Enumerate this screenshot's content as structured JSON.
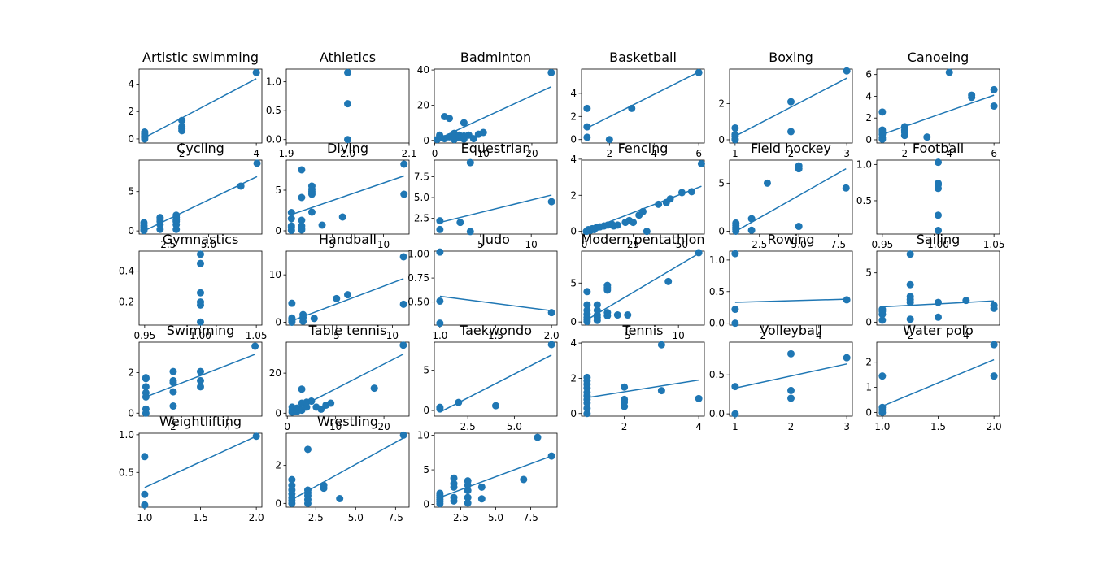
{
  "colors": {
    "point": "#1f77b4",
    "line": "#1f77b4",
    "axis": "#000000"
  },
  "chart_data": [
    {
      "type": "scatter",
      "title": "Artistic swimming",
      "xlim": [
        0.85,
        4.15
      ],
      "ylim": [
        -0.3,
        5.1
      ],
      "xticks": [
        2,
        4
      ],
      "yticks": [
        0,
        2,
        4
      ],
      "x": [
        1,
        1,
        1,
        1,
        1,
        1,
        2,
        2,
        2,
        2,
        4
      ],
      "y": [
        0.0,
        0.1,
        0.2,
        0.3,
        0.4,
        0.5,
        0.6,
        0.75,
        0.9,
        1.35,
        4.85
      ],
      "fit": [
        [
          1,
          0.1
        ],
        [
          4,
          4.4
        ]
      ]
    },
    {
      "type": "scatter",
      "title": "Athletics",
      "xlim": [
        1.9,
        2.1
      ],
      "ylim": [
        -0.06,
        1.22
      ],
      "xticks": [
        1.9,
        2.0,
        2.1
      ],
      "yticks": [
        0.0,
        0.5,
        1.0
      ],
      "x": [
        2.0,
        2.0,
        2.0
      ],
      "y": [
        0.0,
        0.62,
        1.16
      ],
      "fit": null
    },
    {
      "type": "scatter",
      "title": "Badminton",
      "xlim": [
        -0.1,
        25.2
      ],
      "ylim": [
        -1.5,
        40.5
      ],
      "xticks": [
        0,
        10,
        20
      ],
      "yticks": [
        0,
        20,
        40
      ],
      "x": [
        0.5,
        1,
        1,
        2,
        2,
        3,
        3,
        4,
        4,
        4,
        5,
        5,
        6,
        6,
        6,
        7,
        8,
        9,
        10,
        24
      ],
      "y": [
        0.5,
        1.5,
        3,
        1,
        13.5,
        2,
        12.5,
        0.5,
        1.5,
        4,
        1.5,
        3,
        0.8,
        2.5,
        10,
        3,
        1,
        3.5,
        4.5,
        38.5
      ],
      "fit": [
        [
          0.5,
          0.6
        ],
        [
          24,
          30.5
        ]
      ]
    },
    {
      "type": "scatter",
      "title": "Basketball",
      "xlim": [
        0.75,
        6.25
      ],
      "ylim": [
        -0.3,
        6.1
      ],
      "xticks": [
        2,
        4,
        6
      ],
      "yticks": [
        0,
        2,
        4
      ],
      "x": [
        1,
        1,
        1,
        2,
        3,
        6
      ],
      "y": [
        2.7,
        1.1,
        0.2,
        0.0,
        2.7,
        5.8
      ],
      "fit": [
        [
          1,
          1.0
        ],
        [
          6,
          5.85
        ]
      ]
    },
    {
      "type": "scatter",
      "title": "Boxing",
      "xlim": [
        0.9,
        3.1
      ],
      "ylim": [
        -0.18,
        3.9
      ],
      "xticks": [
        1,
        2,
        3
      ],
      "yticks": [
        0,
        2
      ],
      "x": [
        1,
        1,
        1,
        1,
        1,
        2,
        2,
        3
      ],
      "y": [
        0.0,
        0.05,
        0.2,
        0.3,
        0.65,
        2.1,
        0.45,
        3.8
      ],
      "fit": [
        [
          1,
          0.2
        ],
        [
          3,
          3.4
        ]
      ]
    },
    {
      "type": "scatter",
      "title": "Canoeing",
      "xlim": [
        0.75,
        6.25
      ],
      "ylim": [
        -0.3,
        6.5
      ],
      "xticks": [
        2,
        4,
        6
      ],
      "yticks": [
        0,
        2,
        4,
        6
      ],
      "x": [
        1,
        1,
        1,
        1,
        1,
        1,
        2,
        2,
        2,
        2,
        3,
        4,
        5,
        5,
        6,
        6
      ],
      "y": [
        0.05,
        0.2,
        0.5,
        0.7,
        0.9,
        2.55,
        0.4,
        0.7,
        0.9,
        1.2,
        0.25,
        6.2,
        3.9,
        4.1,
        3.1,
        4.6
      ],
      "fit": [
        [
          1,
          0.5
        ],
        [
          6,
          4.1
        ]
      ]
    },
    {
      "type": "scatter",
      "title": "Cycling",
      "xlim": [
        0.7,
        8.3
      ],
      "ylim": [
        -0.4,
        9.0
      ],
      "xticks": [
        2.5,
        5.0
      ],
      "yticks": [
        0,
        5
      ],
      "x": [
        1,
        1,
        1,
        1,
        1,
        2,
        2,
        2,
        2,
        2,
        3,
        3,
        3,
        3,
        3,
        3,
        7,
        8
      ],
      "y": [
        0.05,
        0.2,
        0.5,
        0.7,
        1.05,
        0.2,
        0.8,
        1.2,
        1.5,
        1.7,
        0.2,
        0.8,
        1.2,
        1.4,
        1.7,
        2.0,
        5.7,
        8.6
      ],
      "fit": [
        [
          1,
          0.0
        ],
        [
          8,
          6.9
        ]
      ]
    },
    {
      "type": "scatter",
      "title": "Diving",
      "xlim": [
        0.5,
        12.5
      ],
      "ylim": [
        -0.4,
        8.7
      ],
      "xticks": [
        5,
        10
      ],
      "yticks": [
        0,
        5
      ],
      "x": [
        1,
        1,
        1,
        1,
        1,
        2,
        2,
        2,
        2,
        2,
        2,
        3,
        3,
        3,
        3,
        3,
        4,
        6,
        12,
        12
      ],
      "y": [
        0.05,
        0.4,
        0.6,
        1.5,
        2.25,
        0.1,
        0.3,
        0.6,
        1.3,
        4.1,
        7.5,
        2.3,
        4.5,
        4.8,
        5.1,
        5.5,
        0.7,
        1.7,
        4.5,
        8.2
      ],
      "fit": [
        [
          1,
          2.0
        ],
        [
          12,
          6.75
        ]
      ]
    },
    {
      "type": "scatter",
      "title": "Equestrian",
      "xlim": [
        0.45,
        12.55
      ],
      "ylim": [
        0.6,
        9.5
      ],
      "xticks": [
        5,
        10
      ],
      "yticks": [
        2.5,
        5.0,
        7.5
      ],
      "x": [
        1,
        1,
        3,
        4,
        4,
        12
      ],
      "y": [
        1.15,
        2.2,
        2.0,
        0.9,
        9.2,
        4.5
      ],
      "fit": [
        [
          1,
          2.0
        ],
        [
          12,
          5.3
        ]
      ]
    },
    {
      "type": "scatter",
      "title": "Fencing",
      "xlim": [
        -1.5,
        61.5
      ],
      "ylim": [
        -0.15,
        3.95
      ],
      "xticks": [
        0,
        25,
        50
      ],
      "yticks": [
        0,
        2,
        4
      ],
      "x": [
        1,
        2,
        3,
        4,
        5,
        6,
        8,
        10,
        12,
        14,
        15,
        17,
        21,
        23,
        25,
        28,
        30,
        32,
        38,
        42,
        44,
        50,
        55,
        60
      ],
      "y": [
        0.0,
        0.1,
        0.05,
        0.15,
        0.1,
        0.2,
        0.25,
        0.3,
        0.35,
        0.4,
        0.3,
        0.35,
        0.5,
        0.6,
        0.5,
        0.9,
        1.1,
        0.0,
        1.5,
        1.6,
        1.8,
        2.15,
        2.2,
        3.75
      ],
      "fit": [
        [
          0,
          0.0
        ],
        [
          60,
          2.5
        ]
      ]
    },
    {
      "type": "scatter",
      "title": "Field hockey",
      "xlim": [
        0.6,
        8.4
      ],
      "ylim": [
        -0.3,
        7.4
      ],
      "xticks": [
        2.5,
        5.0,
        7.5
      ],
      "yticks": [
        0,
        5
      ],
      "x": [
        1,
        1,
        1,
        1,
        1,
        2,
        2,
        3,
        5,
        5,
        5,
        8
      ],
      "y": [
        0.0,
        0.2,
        0.4,
        0.6,
        0.85,
        1.3,
        0.1,
        5.0,
        6.8,
        6.5,
        0.5,
        4.5
      ],
      "fit": [
        [
          1,
          0.0
        ],
        [
          8,
          6.5
        ]
      ]
    },
    {
      "type": "scatter",
      "title": "Football",
      "xlim": [
        0.945,
        1.055
      ],
      "ylim": [
        0.04,
        1.06
      ],
      "xticks": [
        0.95,
        1.0,
        1.05
      ],
      "yticks": [
        0.5,
        1.0
      ],
      "x": [
        1.0,
        1.0,
        1.0,
        1.0,
        1.0,
        1.0
      ],
      "y": [
        0.09,
        0.3,
        0.67,
        0.72,
        0.74,
        1.03
      ],
      "fit": null
    },
    {
      "type": "scatter",
      "title": "Gymnastics",
      "xlim": [
        0.945,
        1.055
      ],
      "ylim": [
        0.05,
        0.53
      ],
      "xticks": [
        0.95,
        1.0,
        1.05
      ],
      "yticks": [
        0.2,
        0.4
      ],
      "x": [
        1.0,
        1.0,
        1.0,
        1.0,
        1.0,
        1.0
      ],
      "y": [
        0.07,
        0.18,
        0.2,
        0.26,
        0.45,
        0.51
      ],
      "fit": null
    },
    {
      "type": "scatter",
      "title": "Handball",
      "xlim": [
        0.5,
        11.5
      ],
      "ylim": [
        -0.6,
        15.0
      ],
      "xticks": [
        5,
        10
      ],
      "yticks": [
        0,
        10
      ],
      "x": [
        1,
        1,
        1,
        1,
        1,
        2,
        2,
        2,
        3,
        5,
        6,
        11,
        11
      ],
      "y": [
        0.0,
        0.3,
        0.6,
        0.9,
        4.0,
        0.2,
        1.0,
        1.6,
        0.8,
        5.0,
        5.8,
        13.8,
        3.8
      ],
      "fit": [
        [
          1,
          0.3
        ],
        [
          11,
          9.2
        ]
      ]
    },
    {
      "type": "scatter",
      "title": "Judo",
      "xlim": [
        0.95,
        2.05
      ],
      "ylim": [
        0.26,
        1.03
      ],
      "xticks": [
        1.0,
        1.5,
        2.0
      ],
      "yticks": [
        0.5,
        0.75,
        1.0
      ],
      "x": [
        1,
        1,
        1,
        2
      ],
      "y": [
        0.28,
        0.51,
        1.02,
        0.39
      ],
      "fit": [
        [
          1,
          0.56
        ],
        [
          2,
          0.41
        ]
      ]
    },
    {
      "type": "scatter",
      "title": "Modern pentathlon",
      "xlim": [
        0.45,
        12.55
      ],
      "ylim": [
        -0.4,
        9.1
      ],
      "xticks": [
        5,
        10
      ],
      "yticks": [
        0,
        5
      ],
      "x": [
        1,
        1,
        1,
        1,
        1,
        1,
        1,
        2,
        2,
        2,
        2,
        2,
        3,
        3,
        3,
        3,
        3,
        4,
        5,
        9,
        12
      ],
      "y": [
        0.05,
        0.3,
        0.6,
        1.0,
        1.5,
        2.2,
        3.9,
        0.2,
        0.6,
        0.9,
        1.5,
        2.2,
        0.8,
        1.2,
        4.1,
        4.4,
        4.7,
        0.9,
        0.9,
        5.2,
        8.9
      ],
      "fit": [
        [
          1,
          0.3
        ],
        [
          12,
          8.8
        ]
      ]
    },
    {
      "type": "scatter",
      "title": "Rowing",
      "xlim": [
        0.8,
        5.2
      ],
      "ylim": [
        -0.03,
        1.14
      ],
      "xticks": [
        2,
        4
      ],
      "yticks": [
        0.0,
        0.5,
        1.0
      ],
      "x": [
        1,
        1,
        1,
        5
      ],
      "y": [
        0.0,
        0.22,
        1.1,
        0.37
      ],
      "fit": [
        [
          1,
          0.33
        ],
        [
          5,
          0.38
        ]
      ]
    },
    {
      "type": "scatter",
      "title": "Sailing",
      "xlim": [
        0.8,
        5.2
      ],
      "ylim": [
        -0.3,
        7.2
      ],
      "xticks": [
        2,
        4
      ],
      "yticks": [
        0,
        5
      ],
      "x": [
        1,
        1,
        1,
        1,
        2,
        2,
        2,
        2,
        2,
        2,
        3,
        3,
        4,
        5,
        5
      ],
      "y": [
        0.2,
        0.8,
        1.1,
        1.3,
        0.3,
        2.0,
        2.3,
        2.6,
        3.8,
        6.9,
        0.5,
        2.0,
        2.2,
        1.4,
        1.7
      ],
      "fit": [
        [
          1,
          1.55
        ],
        [
          5,
          2.15
        ]
      ]
    },
    {
      "type": "scatter",
      "title": "Swimming",
      "xlim": [
        0.75,
        5.25
      ],
      "ylim": [
        -0.15,
        3.5
      ],
      "xticks": [
        2,
        4
      ],
      "yticks": [
        0,
        2
      ],
      "x": [
        1,
        1,
        1,
        1,
        1,
        1,
        1,
        2,
        2,
        2,
        2,
        2,
        3,
        3,
        3,
        5
      ],
      "y": [
        0.0,
        0.2,
        0.8,
        1.0,
        1.3,
        1.7,
        1.75,
        0.35,
        1.05,
        1.5,
        1.6,
        2.05,
        1.3,
        1.6,
        2.05,
        3.3
      ],
      "fit": [
        [
          1,
          0.8
        ],
        [
          5,
          2.9
        ]
      ]
    },
    {
      "type": "scatter",
      "title": "Table tennis",
      "xlim": [
        -0.2,
        25.2
      ],
      "ylim": [
        -1.5,
        35.5
      ],
      "xticks": [
        0,
        10,
        20
      ],
      "yticks": [
        0,
        20
      ],
      "x": [
        1,
        1,
        1,
        2,
        2,
        3,
        3,
        3,
        4,
        4,
        5,
        6,
        7,
        8,
        9,
        18,
        24
      ],
      "y": [
        0.5,
        1.5,
        3,
        0.8,
        2.5,
        1.5,
        5,
        12,
        3,
        5.5,
        6,
        3,
        2,
        4,
        5,
        12.5,
        34
      ],
      "fit": [
        [
          1,
          1.0
        ],
        [
          24,
          29.5
        ]
      ]
    },
    {
      "type": "scatter",
      "title": "Taekwondo",
      "xlim": [
        0.7,
        7.3
      ],
      "ylim": [
        -0.7,
        8.5
      ],
      "xticks": [
        2.5,
        5.0
      ],
      "yticks": [
        0,
        5
      ],
      "x": [
        1,
        1,
        2,
        4,
        7
      ],
      "y": [
        0.2,
        0.4,
        1.0,
        0.6,
        8.2
      ],
      "fit": [
        [
          1,
          -0.2
        ],
        [
          7,
          6.9
        ]
      ]
    },
    {
      "type": "scatter",
      "title": "Tennis",
      "xlim": [
        0.85,
        4.15
      ],
      "ylim": [
        -0.15,
        4.05
      ],
      "xticks": [
        2,
        4
      ],
      "yticks": [
        0,
        2,
        4
      ],
      "x": [
        1,
        1,
        1,
        1,
        1,
        1,
        1,
        1,
        1,
        1,
        2,
        2,
        2,
        2,
        3,
        3,
        4
      ],
      "y": [
        0.0,
        0.3,
        0.6,
        0.8,
        1.0,
        1.2,
        1.45,
        1.65,
        1.85,
        2.05,
        0.4,
        0.65,
        0.8,
        1.5,
        1.3,
        3.9,
        0.85
      ],
      "fit": [
        [
          1,
          0.9
        ],
        [
          4,
          1.9
        ]
      ]
    },
    {
      "type": "scatter",
      "title": "Volleyball",
      "xlim": [
        0.9,
        3.1
      ],
      "ylim": [
        -0.03,
        0.92
      ],
      "xticks": [
        1,
        2,
        3
      ],
      "yticks": [
        0.0,
        0.5
      ],
      "x": [
        1,
        1,
        2,
        2,
        2,
        3
      ],
      "y": [
        0.0,
        0.35,
        0.2,
        0.3,
        0.77,
        0.72
      ],
      "fit": [
        [
          1,
          0.33
        ],
        [
          3,
          0.64
        ]
      ]
    },
    {
      "type": "scatter",
      "title": "Water polo",
      "xlim": [
        0.95,
        2.05
      ],
      "ylim": [
        -0.15,
        2.8
      ],
      "xticks": [
        1.0,
        1.5,
        2.0
      ],
      "yticks": [
        0,
        1,
        2
      ],
      "x": [
        1,
        1,
        1,
        1,
        2,
        2
      ],
      "y": [
        0.0,
        0.1,
        0.2,
        1.45,
        1.45,
        2.7
      ],
      "fit": [
        [
          1,
          0.25
        ],
        [
          2,
          2.1
        ]
      ]
    },
    {
      "type": "scatter",
      "title": "Weightlifting",
      "xlim": [
        0.95,
        2.05
      ],
      "ylim": [
        0.04,
        1.02
      ],
      "xticks": [
        1.0,
        1.5,
        2.0
      ],
      "yticks": [
        0.5,
        1.0
      ],
      "x": [
        1,
        1,
        1,
        2
      ],
      "y": [
        0.07,
        0.21,
        0.71,
        0.98
      ],
      "fit": [
        [
          1,
          0.3
        ],
        [
          2,
          0.98
        ]
      ]
    },
    {
      "type": "scatter",
      "title": "Wrestling",
      "xlim": [
        0.65,
        8.35
      ],
      "ylim": [
        -0.2,
        3.7
      ],
      "xticks": [
        2.5,
        5.0,
        7.5
      ],
      "yticks": [
        0,
        2
      ],
      "x": [
        1,
        1,
        1,
        1,
        1,
        1,
        1,
        2,
        2,
        2,
        2,
        2,
        2,
        3,
        3,
        4,
        8
      ],
      "y": [
        0.0,
        0.15,
        0.3,
        0.5,
        0.7,
        0.95,
        1.25,
        0.0,
        0.2,
        0.4,
        0.55,
        0.7,
        2.85,
        0.8,
        0.95,
        0.25,
        3.6
      ],
      "fit": [
        [
          1,
          0.2
        ],
        [
          8,
          3.45
        ]
      ]
    },
    {
      "type": "scatter",
      "title": "",
      "xlim": [
        0.6,
        9.4
      ],
      "ylim": [
        -0.4,
        10.3
      ],
      "xticks": [
        2.5,
        5.0,
        7.5
      ],
      "yticks": [
        0,
        5,
        10
      ],
      "x": [
        1,
        1,
        1,
        1,
        1,
        1,
        2,
        2,
        2,
        2,
        2,
        3,
        3,
        3,
        3,
        3,
        4,
        4,
        7,
        8,
        9
      ],
      "y": [
        0.1,
        0.4,
        0.7,
        1.0,
        1.3,
        1.6,
        0.5,
        1.0,
        2.5,
        3.0,
        3.8,
        0.2,
        1.0,
        2.0,
        2.8,
        3.4,
        0.8,
        2.5,
        3.6,
        9.7,
        7.0
      ],
      "fit": [
        [
          1,
          1.0
        ],
        [
          9,
          7.0
        ]
      ]
    }
  ]
}
